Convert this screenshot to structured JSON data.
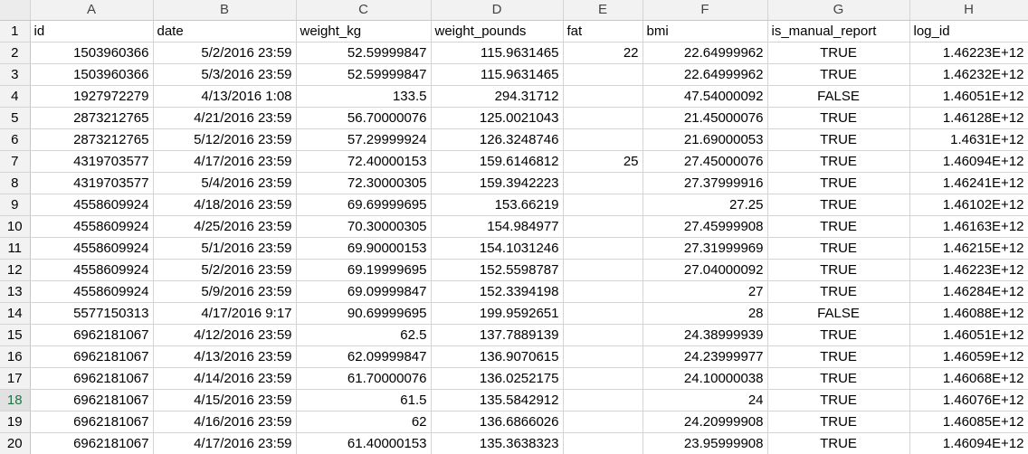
{
  "sheet": {
    "columns": [
      "A",
      "B",
      "C",
      "D",
      "E",
      "F",
      "G",
      "H"
    ],
    "active_row": 18,
    "header": {
      "row_number": "1",
      "cells": [
        "id",
        "date",
        "weight_kg",
        "weight_pounds",
        "fat",
        "bmi",
        "is_manual_report",
        "log_id"
      ]
    },
    "rows": [
      {
        "row_number": "2",
        "cells": [
          "1503960366",
          "5/2/2016 23:59",
          "52.59999847",
          "115.9631465",
          "22",
          "22.64999962",
          "TRUE",
          "1.46223E+12"
        ]
      },
      {
        "row_number": "3",
        "cells": [
          "1503960366",
          "5/3/2016 23:59",
          "52.59999847",
          "115.9631465",
          "",
          "22.64999962",
          "TRUE",
          "1.46232E+12"
        ]
      },
      {
        "row_number": "4",
        "cells": [
          "1927972279",
          "4/13/2016 1:08",
          "133.5",
          "294.31712",
          "",
          "47.54000092",
          "FALSE",
          "1.46051E+12"
        ]
      },
      {
        "row_number": "5",
        "cells": [
          "2873212765",
          "4/21/2016 23:59",
          "56.70000076",
          "125.0021043",
          "",
          "21.45000076",
          "TRUE",
          "1.46128E+12"
        ]
      },
      {
        "row_number": "6",
        "cells": [
          "2873212765",
          "5/12/2016 23:59",
          "57.29999924",
          "126.3248746",
          "",
          "21.69000053",
          "TRUE",
          "1.4631E+12"
        ]
      },
      {
        "row_number": "7",
        "cells": [
          "4319703577",
          "4/17/2016 23:59",
          "72.40000153",
          "159.6146812",
          "25",
          "27.45000076",
          "TRUE",
          "1.46094E+12"
        ]
      },
      {
        "row_number": "8",
        "cells": [
          "4319703577",
          "5/4/2016 23:59",
          "72.30000305",
          "159.3942223",
          "",
          "27.37999916",
          "TRUE",
          "1.46241E+12"
        ]
      },
      {
        "row_number": "9",
        "cells": [
          "4558609924",
          "4/18/2016 23:59",
          "69.69999695",
          "153.66219",
          "",
          "27.25",
          "TRUE",
          "1.46102E+12"
        ]
      },
      {
        "row_number": "10",
        "cells": [
          "4558609924",
          "4/25/2016 23:59",
          "70.30000305",
          "154.984977",
          "",
          "27.45999908",
          "TRUE",
          "1.46163E+12"
        ]
      },
      {
        "row_number": "11",
        "cells": [
          "4558609924",
          "5/1/2016 23:59",
          "69.90000153",
          "154.1031246",
          "",
          "27.31999969",
          "TRUE",
          "1.46215E+12"
        ]
      },
      {
        "row_number": "12",
        "cells": [
          "4558609924",
          "5/2/2016 23:59",
          "69.19999695",
          "152.5598787",
          "",
          "27.04000092",
          "TRUE",
          "1.46223E+12"
        ]
      },
      {
        "row_number": "13",
        "cells": [
          "4558609924",
          "5/9/2016 23:59",
          "69.09999847",
          "152.3394198",
          "",
          "27",
          "TRUE",
          "1.46284E+12"
        ]
      },
      {
        "row_number": "14",
        "cells": [
          "5577150313",
          "4/17/2016 9:17",
          "90.69999695",
          "199.9592651",
          "",
          "28",
          "FALSE",
          "1.46088E+12"
        ]
      },
      {
        "row_number": "15",
        "cells": [
          "6962181067",
          "4/12/2016 23:59",
          "62.5",
          "137.7889139",
          "",
          "24.38999939",
          "TRUE",
          "1.46051E+12"
        ]
      },
      {
        "row_number": "16",
        "cells": [
          "6962181067",
          "4/13/2016 23:59",
          "62.09999847",
          "136.9070615",
          "",
          "24.23999977",
          "TRUE",
          "1.46059E+12"
        ]
      },
      {
        "row_number": "17",
        "cells": [
          "6962181067",
          "4/14/2016 23:59",
          "61.70000076",
          "136.0252175",
          "",
          "24.10000038",
          "TRUE",
          "1.46068E+12"
        ]
      },
      {
        "row_number": "18",
        "cells": [
          "6962181067",
          "4/15/2016 23:59",
          "61.5",
          "135.5842912",
          "",
          "24",
          "TRUE",
          "1.46076E+12"
        ]
      },
      {
        "row_number": "19",
        "cells": [
          "6962181067",
          "4/16/2016 23:59",
          "62",
          "136.6866026",
          "",
          "24.20999908",
          "TRUE",
          "1.46085E+12"
        ]
      },
      {
        "row_number": "20",
        "cells": [
          "6962181067",
          "4/17/2016 23:59",
          "61.40000153",
          "135.3638323",
          "",
          "23.95999908",
          "TRUE",
          "1.46094E+12"
        ]
      }
    ]
  }
}
